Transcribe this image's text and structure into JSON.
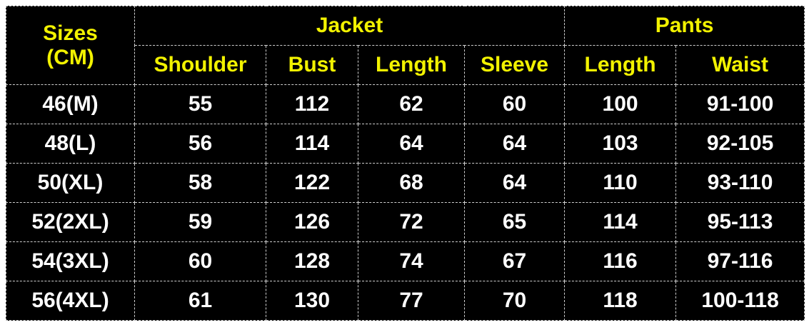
{
  "header": {
    "sizes_label_line1": "Sizes",
    "sizes_label_line2": "(CM)",
    "jacket": "Jacket",
    "pants": "Pants",
    "columns": [
      "Shoulder",
      "Bust",
      "Length",
      "Sleeve",
      "Length",
      "Waist"
    ]
  },
  "rows": [
    [
      "46(M)",
      "55",
      "112",
      "62",
      "60",
      "100",
      "91-100"
    ],
    [
      "48(L)",
      "56",
      "114",
      "64",
      "64",
      "103",
      "92-105"
    ],
    [
      "50(XL)",
      "58",
      "122",
      "68",
      "64",
      "110",
      "93-110"
    ],
    [
      "52(2XL)",
      "59",
      "126",
      "72",
      "65",
      "114",
      "95-113"
    ],
    [
      "54(3XL)",
      "60",
      "128",
      "74",
      "67",
      "116",
      "97-116"
    ],
    [
      "56(4XL)",
      "61",
      "130",
      "77",
      "70",
      "118",
      "100-118"
    ]
  ],
  "colors": {
    "header_text": "#f2f200",
    "body_text": "#ffffff",
    "background": "#000000"
  }
}
